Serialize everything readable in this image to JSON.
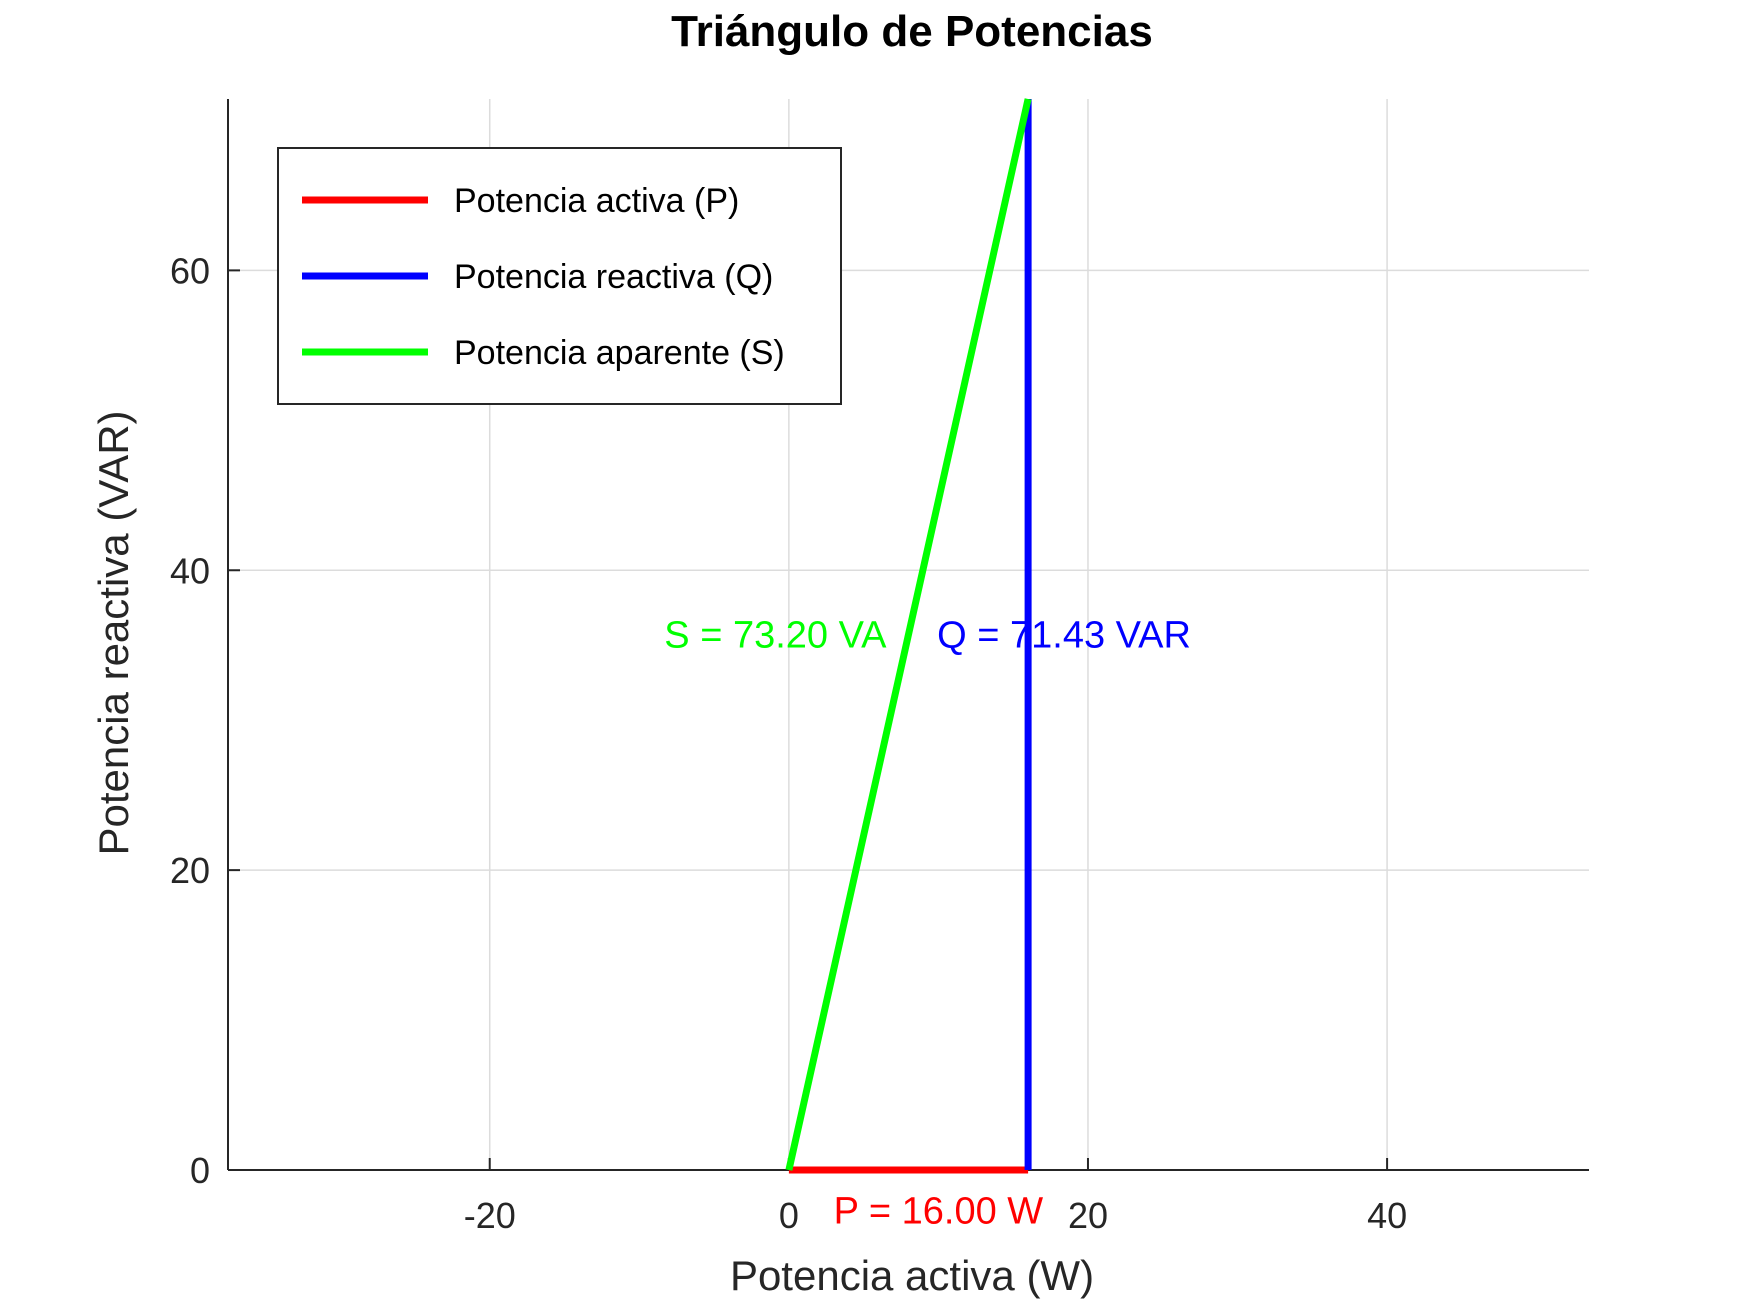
{
  "chart_data": {
    "type": "line",
    "title": "Triángulo de Potencias",
    "xlabel": "Potencia activa (W)",
    "ylabel": "Potencia reactiva (VAR)",
    "xlim": [
      -37.5,
      53.5
    ],
    "ylim": [
      0,
      71.43
    ],
    "xticks": [
      -20,
      0,
      20,
      40
    ],
    "yticks": [
      0,
      20,
      40,
      60
    ],
    "grid": true,
    "legend_position": "top-left",
    "series": [
      {
        "name": "Potencia activa (P)",
        "color": "#ff0000",
        "points": [
          [
            0,
            0
          ],
          [
            16.0,
            0
          ]
        ]
      },
      {
        "name": "Potencia reactiva (Q)",
        "color": "#0000ff",
        "points": [
          [
            16.0,
            0
          ],
          [
            16.0,
            71.43
          ]
        ]
      },
      {
        "name": "Potencia aparente (S)",
        "color": "#00ff00",
        "points": [
          [
            0,
            0
          ],
          [
            16.0,
            71.43
          ]
        ]
      }
    ],
    "annotations": [
      {
        "text": "P = 16.00 W",
        "x": 10,
        "y": -2.7,
        "color": "#ff0000"
      },
      {
        "text": "Q = 71.43 VAR",
        "x": 18.4,
        "y": 35.7,
        "color": "#0000ff"
      },
      {
        "text": "S = 73.20 VA",
        "x": -0.9,
        "y": 35.7,
        "color": "#00ff00"
      }
    ]
  }
}
